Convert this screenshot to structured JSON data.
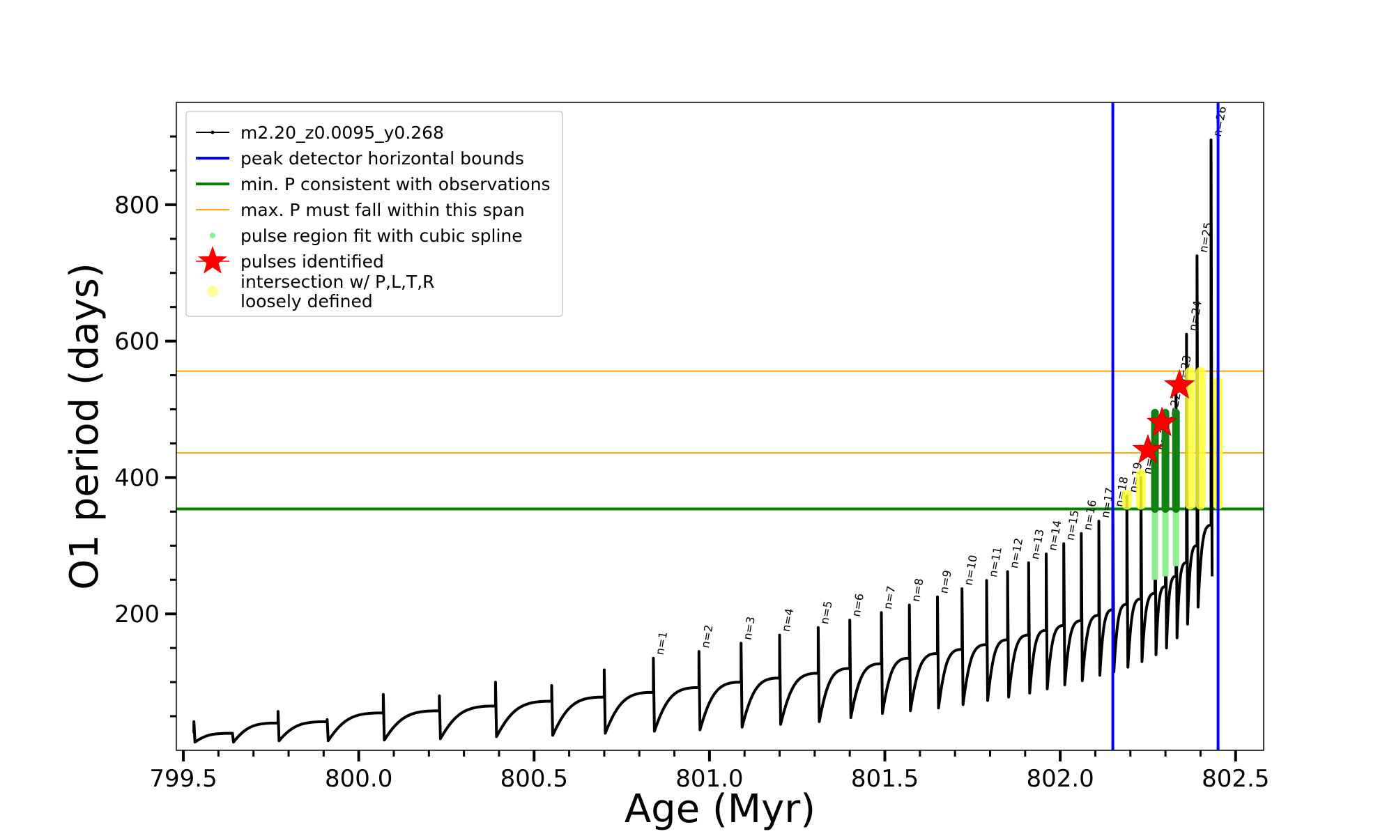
{
  "chart_data": {
    "type": "line",
    "title": "",
    "xlabel": "Age (Myr)",
    "ylabel": "O1 period (days)",
    "xlim": [
      799.48,
      802.58
    ],
    "ylim": [
      0,
      950
    ],
    "x_ticks": [
      799.5,
      800.0,
      800.5,
      801.0,
      801.5,
      802.0,
      802.5
    ],
    "x_tick_labels": [
      "799.5",
      "800.0",
      "800.5",
      "801.0",
      "801.5",
      "802.0",
      "802.5"
    ],
    "y_ticks": [
      200,
      400,
      600,
      800
    ],
    "y_tick_labels": [
      "200",
      "400",
      "600",
      "800"
    ],
    "grid": false,
    "legend_position": "top-left",
    "legend": [
      {
        "label": "m2.20_z0.0095_y0.268",
        "color": "#000000",
        "marker": "line-dot"
      },
      {
        "label": "peak detector horizontal bounds",
        "color": "#0000ff",
        "marker": "line"
      },
      {
        "label": "min. P consistent with observations",
        "color": "#008000",
        "marker": "line"
      },
      {
        "label": "max. P must fall within this span",
        "color": "#ffa500",
        "marker": "line-thin"
      },
      {
        "label": "pulse region fit with cubic spline",
        "color": "#90ee90",
        "marker": "dot"
      },
      {
        "label": "pulses identified",
        "color": "#ff0000",
        "marker": "star"
      },
      {
        "label": "intersection w/ P,L,T,R\nloosely defined",
        "color": "#ffff99",
        "marker": "circle"
      }
    ],
    "series": [
      {
        "name": "m2.20_z0.0095_y0.268",
        "color": "#000000",
        "pulses": [
          {
            "x": 799.53,
            "base": 12,
            "peak": 42,
            "pre": 25
          },
          {
            "x": 799.64,
            "base": 12,
            "peak": 25,
            "pre": 25
          },
          {
            "x": 799.77,
            "base": 14,
            "peak": 57,
            "pre": 40
          },
          {
            "x": 799.91,
            "base": 14,
            "peak": 45,
            "pre": 42
          },
          {
            "x": 800.07,
            "base": 15,
            "peak": 82,
            "pre": 55
          },
          {
            "x": 800.23,
            "base": 17,
            "peak": 80,
            "pre": 58
          },
          {
            "x": 800.39,
            "base": 20,
            "peak": 100,
            "pre": 65
          },
          {
            "x": 800.55,
            "base": 22,
            "peak": 95,
            "pre": 72
          },
          {
            "x": 800.7,
            "base": 25,
            "peak": 118,
            "pre": 78
          },
          {
            "x": 800.84,
            "base": 28,
            "peak": 135,
            "pre": 85,
            "label": "n=1"
          },
          {
            "x": 800.97,
            "base": 30,
            "peak": 145,
            "pre": 92,
            "label": "n=2"
          },
          {
            "x": 801.09,
            "base": 34,
            "peak": 157,
            "pre": 100,
            "label": "n=3"
          },
          {
            "x": 801.2,
            "base": 38,
            "peak": 169,
            "pre": 106,
            "label": "n=4"
          },
          {
            "x": 801.31,
            "base": 42,
            "peak": 180,
            "pre": 113,
            "label": "n=5"
          },
          {
            "x": 801.4,
            "base": 48,
            "peak": 191,
            "pre": 120,
            "label": "n=6"
          },
          {
            "x": 801.49,
            "base": 54,
            "peak": 202,
            "pre": 127,
            "label": "n=7"
          },
          {
            "x": 801.57,
            "base": 58,
            "peak": 213,
            "pre": 135,
            "label": "n=8"
          },
          {
            "x": 801.65,
            "base": 62,
            "peak": 225,
            "pre": 142,
            "label": "n=9"
          },
          {
            "x": 801.72,
            "base": 67,
            "peak": 237,
            "pre": 148,
            "label": "n=10"
          },
          {
            "x": 801.79,
            "base": 73,
            "peak": 249,
            "pre": 155,
            "label": "n=11"
          },
          {
            "x": 801.85,
            "base": 78,
            "peak": 262,
            "pre": 162,
            "label": "n=12"
          },
          {
            "x": 801.91,
            "base": 84,
            "peak": 275,
            "pre": 169,
            "label": "n=13"
          },
          {
            "x": 801.96,
            "base": 90,
            "peak": 288,
            "pre": 176,
            "label": "n=14"
          },
          {
            "x": 802.01,
            "base": 96,
            "peak": 303,
            "pre": 183,
            "label": "n=15"
          },
          {
            "x": 802.06,
            "base": 102,
            "peak": 318,
            "pre": 190,
            "label": "n=16"
          },
          {
            "x": 802.11,
            "base": 110,
            "peak": 336,
            "pre": 198,
            "label": "n=17"
          },
          {
            "x": 802.15,
            "base": 115,
            "peak": 352,
            "pre": 206,
            "label": "n=18"
          },
          {
            "x": 802.19,
            "base": 122,
            "peak": 373,
            "pre": 214,
            "label": "n=19"
          },
          {
            "x": 802.23,
            "base": 130,
            "peak": 400,
            "pre": 222,
            "label": "n=20"
          },
          {
            "x": 802.27,
            "base": 140,
            "peak": 435,
            "pre": 230,
            "label": "n=21"
          },
          {
            "x": 802.3,
            "base": 150,
            "peak": 475,
            "pre": 240,
            "label": "n=22"
          },
          {
            "x": 802.33,
            "base": 165,
            "peak": 530,
            "pre": 255,
            "label": "n=23"
          },
          {
            "x": 802.36,
            "base": 185,
            "peak": 610,
            "pre": 275,
            "label": "n=24"
          },
          {
            "x": 802.39,
            "base": 210,
            "peak": 725,
            "pre": 300,
            "label": "n=25"
          },
          {
            "x": 802.43,
            "base": 255,
            "peak": 895,
            "pre": 330,
            "label": "n=26"
          }
        ]
      }
    ],
    "vertical_lines": [
      {
        "name": "peak detector horizontal bounds",
        "x": 802.15,
        "color": "#0000ff"
      },
      {
        "name": "peak detector horizontal bounds",
        "x": 802.45,
        "color": "#0000ff"
      }
    ],
    "horizontal_lines": [
      {
        "name": "min. P consistent with observations",
        "y": 354,
        "color": "#008000",
        "weight": "thick"
      },
      {
        "name": "max. P must fall within this span",
        "y": 436,
        "color": "#ffa500",
        "weight": "thin"
      },
      {
        "name": "max. P must fall within this span",
        "y": 556,
        "color": "#ffa500",
        "weight": "thin"
      }
    ],
    "spline_regions": [
      {
        "x": 802.27,
        "low": 250,
        "high": 495
      },
      {
        "x": 802.3,
        "low": 255,
        "high": 495
      },
      {
        "x": 802.33,
        "low": 270,
        "high": 495
      }
    ],
    "identified_pulses": [
      {
        "x": 802.25,
        "y": 440
      },
      {
        "x": 802.29,
        "y": 480
      },
      {
        "x": 802.34,
        "y": 535
      }
    ],
    "intersections": [
      {
        "x": 802.19,
        "low": 360,
        "high": 375
      },
      {
        "x": 802.23,
        "low": 360,
        "high": 405
      },
      {
        "x": 802.37,
        "low": 360,
        "high": 555
      },
      {
        "x": 802.4,
        "low": 360,
        "high": 555
      },
      {
        "x": 802.45,
        "low": 360,
        "high": 540
      }
    ]
  }
}
